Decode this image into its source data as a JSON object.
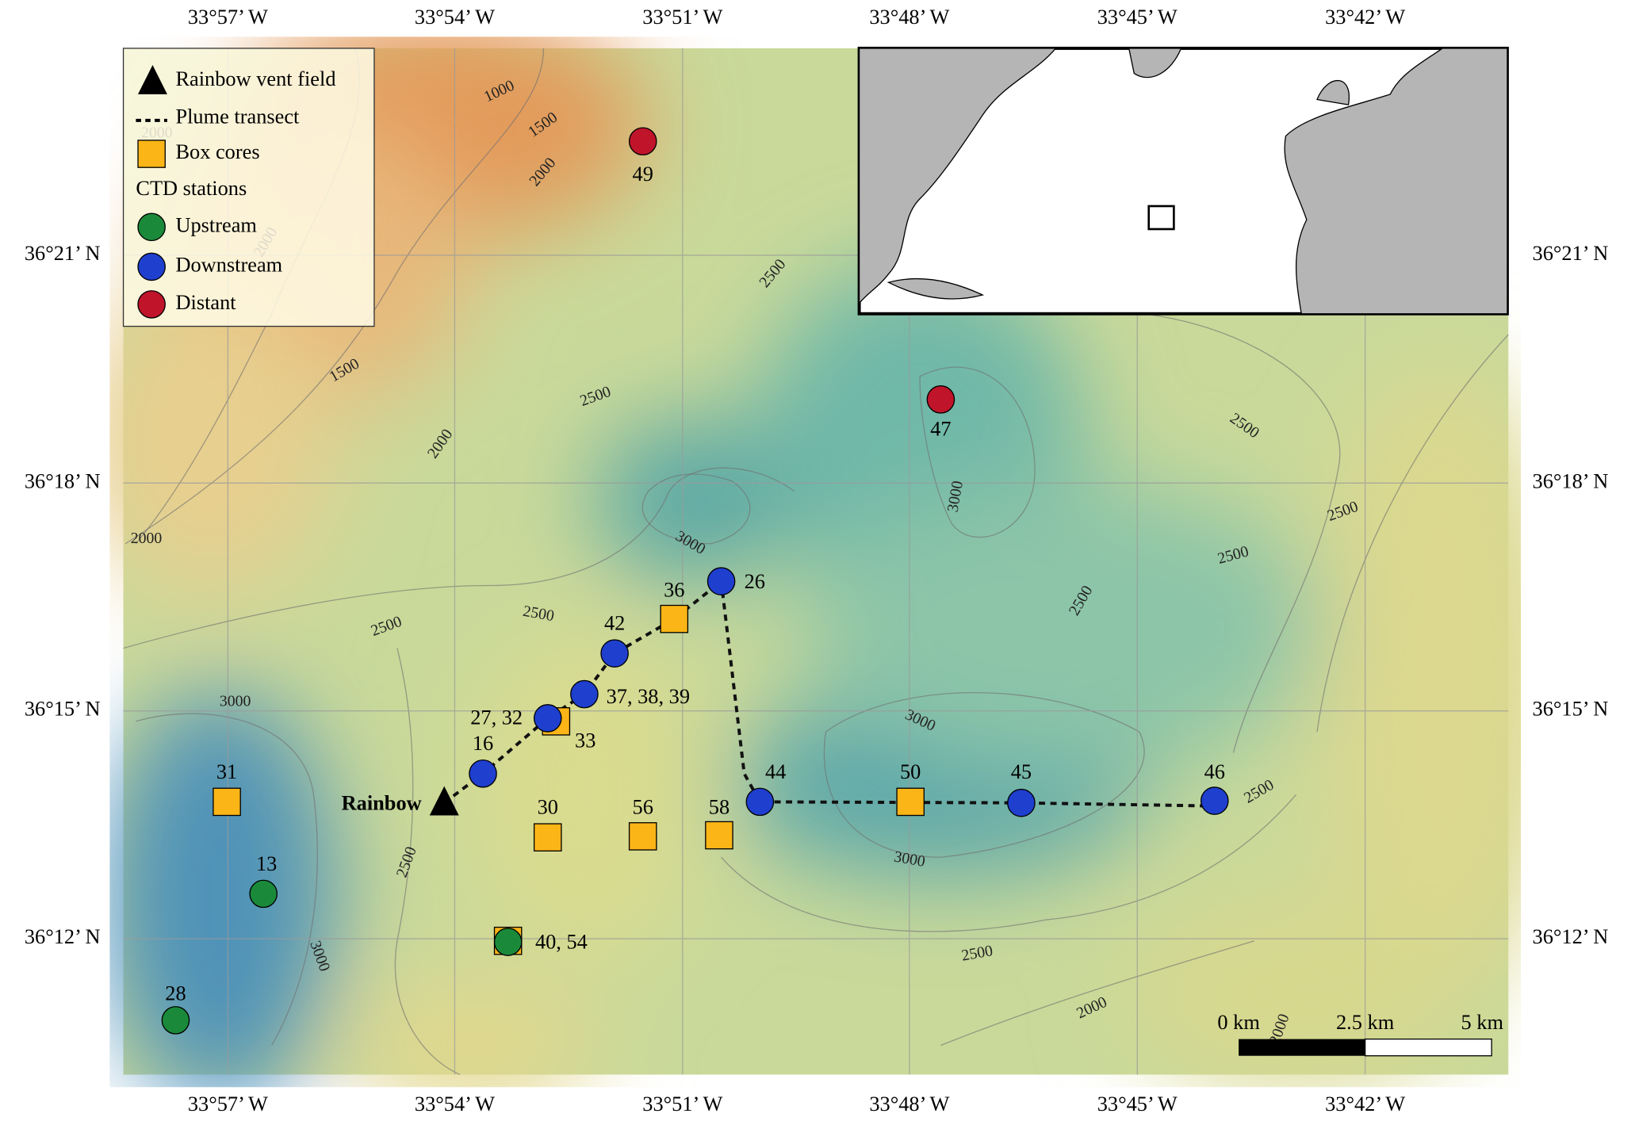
{
  "map": {
    "top_axis_labels": [
      "33°57’ W",
      "33°54’ W",
      "33°51’ W",
      "33°48’ W",
      "33°45’ W",
      "33°42’ W"
    ],
    "bottom_axis_labels": [
      "33°57’ W",
      "33°54’ W",
      "33°51’ W",
      "33°48’ W",
      "33°45’ W",
      "33°42’ W"
    ],
    "left_axis_labels": [
      "36°21’ N",
      "36°18’ N",
      "36°15’ N",
      "36°12’ N"
    ],
    "right_axis_labels": [
      "36°21’ N",
      "36°18’ N",
      "36°15’ N",
      "36°12’ N"
    ],
    "vent_label": "Rainbow",
    "contour_labels": [
      "1000",
      "1500",
      "2000",
      "2000",
      "1500",
      "2000",
      "2500",
      "2000",
      "2000",
      "2500",
      "2500",
      "3000",
      "3000",
      "2500",
      "3000",
      "3000",
      "3000",
      "2500",
      "2500",
      "2500",
      "2500",
      "2500",
      "2500",
      "3000",
      "2500",
      "2000",
      "2000"
    ],
    "stations": [
      "49",
      "47",
      "26",
      "42",
      "37, 38, 39",
      "27, 32",
      "16",
      "44",
      "45",
      "46",
      "13",
      "28",
      "40, 54"
    ],
    "box_cores": [
      "36",
      "33",
      "31",
      "30",
      "56",
      "58",
      "50"
    ],
    "scale_bar": [
      "0 km",
      "2.5 km",
      "5 km"
    ]
  },
  "legend": {
    "items": [
      "Rainbow vent field",
      "Plume transect",
      "Box cores",
      "CTD stations",
      "Upstream",
      "Downstream",
      "Distant"
    ]
  }
}
